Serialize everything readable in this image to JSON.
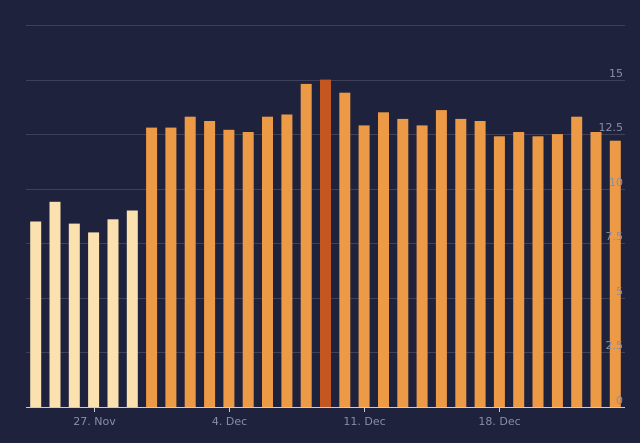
{
  "chart_data": {
    "type": "bar",
    "title": "",
    "xlabel": "",
    "ylabel": "",
    "ylim": [
      0,
      17.5
    ],
    "y_ticks": [
      0,
      2.5,
      5,
      7.5,
      10,
      12.5,
      15
    ],
    "y_tick_labels": [
      "0",
      "2.5",
      "5",
      "7.5",
      "10",
      "12.5",
      "15"
    ],
    "y_axis_position": "right",
    "grid": true,
    "x_tick_labels": [
      {
        "label": "27. Nov",
        "category_index": 3
      },
      {
        "label": "4. Dec",
        "category_index": 10
      },
      {
        "label": "11. Dec",
        "category_index": 17
      },
      {
        "label": "18. Dec",
        "category_index": 24
      }
    ],
    "categories": [
      "24. Nov",
      "25. Nov",
      "26. Nov",
      "27. Nov",
      "28. Nov",
      "29. Nov",
      "30. Nov",
      "1. Dec",
      "2. Dec",
      "3. Dec",
      "4. Dec",
      "5. Dec",
      "6. Dec",
      "7. Dec",
      "8. Dec",
      "9. Dec",
      "10. Dec",
      "11. Dec",
      "12. Dec",
      "13. Dec",
      "14. Dec",
      "15. Dec",
      "16. Dec",
      "17. Dec",
      "18. Dec",
      "19. Dec",
      "20. Dec",
      "21. Dec",
      "22. Dec",
      "23. Dec",
      "24. Dec"
    ],
    "values": [
      8.5,
      9.4,
      8.4,
      8.0,
      8.6,
      9.0,
      12.8,
      12.8,
      13.3,
      13.1,
      12.7,
      12.6,
      13.3,
      13.4,
      14.8,
      15.0,
      14.4,
      12.9,
      13.5,
      13.2,
      12.9,
      13.6,
      13.2,
      13.1,
      12.4,
      12.6,
      12.4,
      12.5,
      13.3,
      12.6,
      12.2
    ],
    "bar_colors": [
      "#fbe0b0",
      "#fbe0b0",
      "#fbe0b0",
      "#fbe0b0",
      "#fbe0b0",
      "#fbe0b0",
      "#ec9a45",
      "#ec9a45",
      "#ec9a45",
      "#ec9a45",
      "#ec9a45",
      "#ec9a45",
      "#ec9a45",
      "#ec9a45",
      "#ec9a45",
      "#c4571f",
      "#ec9a45",
      "#ec9a45",
      "#ec9a45",
      "#ec9a45",
      "#ec9a45",
      "#ec9a45",
      "#ec9a45",
      "#ec9a45",
      "#ec9a45",
      "#ec9a45",
      "#ec9a45",
      "#ec9a45",
      "#ec9a45",
      "#ec9a45",
      "#ec9a45"
    ]
  },
  "colors": {
    "background": "#1f223d",
    "gridline": "#3e4159",
    "axis_text": "#8a8da6",
    "baseline": "#c9cbd8"
  }
}
